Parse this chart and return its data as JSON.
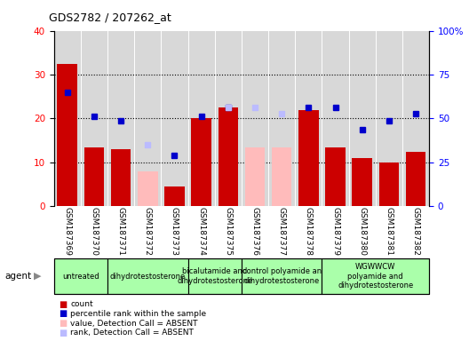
{
  "title": "GDS2782 / 207262_at",
  "samples": [
    "GSM187369",
    "GSM187370",
    "GSM187371",
    "GSM187372",
    "GSM187373",
    "GSM187374",
    "GSM187375",
    "GSM187376",
    "GSM187377",
    "GSM187378",
    "GSM187379",
    "GSM187380",
    "GSM187381",
    "GSM187382"
  ],
  "count": [
    32.5,
    13.5,
    13.0,
    null,
    4.5,
    20.0,
    22.5,
    null,
    null,
    22.0,
    13.5,
    11.0,
    10.0,
    12.5
  ],
  "percentile_rank": [
    26,
    20.5,
    19.5,
    null,
    11.5,
    20.5,
    22.5,
    null,
    null,
    22.5,
    22.5,
    17.5,
    19.5,
    21.0
  ],
  "value_absent": [
    null,
    null,
    null,
    8.0,
    null,
    null,
    null,
    13.5,
    13.5,
    null,
    null,
    null,
    null,
    null
  ],
  "rank_absent": [
    null,
    null,
    null,
    14.0,
    null,
    null,
    22.5,
    22.5,
    21.0,
    null,
    null,
    null,
    null,
    null
  ],
  "group_starts": [
    0,
    2,
    5,
    7,
    10
  ],
  "group_ends": [
    2,
    5,
    7,
    10,
    14
  ],
  "group_labels": [
    "untreated",
    "dihydrotestosterone",
    "bicalutamide and\ndihydrotestosterone",
    "control polyamide an\ndihydrotestosterone",
    "WGWWCW\npolyamide and\ndihydrotestosterone"
  ],
  "left_ylim": [
    0,
    40
  ],
  "right_ylim": [
    0,
    100
  ],
  "left_yticks": [
    0,
    10,
    20,
    30,
    40
  ],
  "right_yticks": [
    0,
    25,
    50,
    75,
    100
  ],
  "right_yticklabels": [
    "0",
    "25",
    "50",
    "75",
    "100%"
  ],
  "color_count": "#cc0000",
  "color_rank": "#0000cc",
  "color_value_absent": "#ffbbbb",
  "color_rank_absent": "#bbbbff",
  "color_bg_plot": "#d8d8d8",
  "color_bg_agent": "#aaffaa",
  "color_bg_agent_light": "#ccffcc"
}
